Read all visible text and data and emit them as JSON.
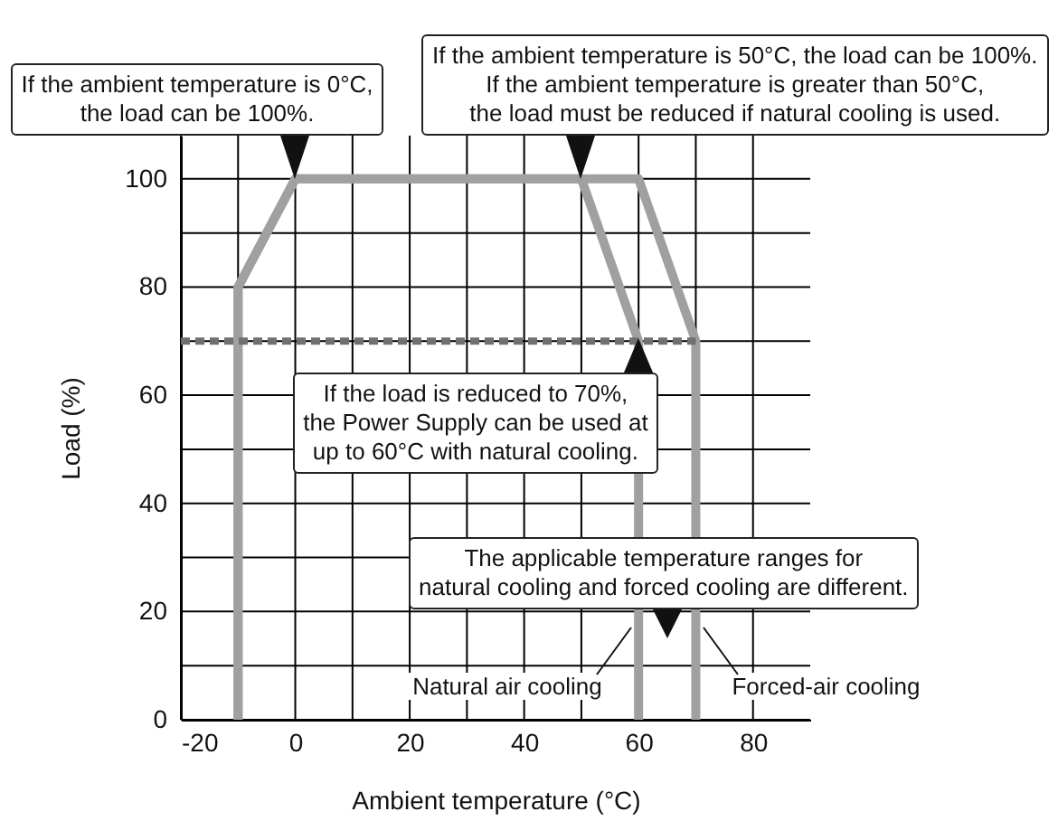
{
  "chart_data": {
    "type": "line",
    "xlabel": "Ambient temperature (°C)",
    "ylabel": "Load (%)",
    "xlim": [
      -20,
      90
    ],
    "ylim": [
      0,
      108
    ],
    "xticks": [
      -20,
      {
        "value": -10,
        "label": null
      },
      0,
      {
        "value": 10,
        "label": null
      },
      20,
      {
        "value": 30,
        "label": null
      },
      40,
      {
        "value": 50,
        "label": null
      },
      60,
      {
        "value": 70,
        "label": null
      },
      80
    ],
    "yticks": [
      0,
      {
        "value": 10,
        "label": null
      },
      20,
      {
        "value": 30,
        "label": null
      },
      40,
      {
        "value": 50,
        "label": null
      },
      60,
      {
        "value": 70,
        "label": null
      },
      80,
      {
        "value": 90,
        "label": null
      },
      100
    ],
    "grid": true,
    "series": [
      {
        "name": "Natural air cooling",
        "color": "#a0a0a0",
        "x": [
          -10,
          -10,
          0,
          50,
          60,
          60
        ],
        "values": [
          0,
          80,
          100,
          100,
          70,
          0
        ]
      },
      {
        "name": "Forced-air cooling",
        "color": "#a0a0a0",
        "x": [
          -10,
          -10,
          0,
          60,
          70,
          70
        ],
        "values": [
          0,
          80,
          100,
          100,
          70,
          0
        ]
      },
      {
        "color": "#707070",
        "line_style": "dashed",
        "x": [
          -20,
          70
        ],
        "values": [
          70,
          70
        ]
      }
    ],
    "annotations": [
      {
        "text": "If the ambient temperature is 0°C,\nthe load can be 100%.",
        "x": 0,
        "y": 100
      },
      {
        "text": "If the ambient temperature is 50°C, the load can be 100%.\nIf the ambient temperature is greater than 50°C,\nthe load must be reduced if natural cooling is used.",
        "x": 50,
        "y": 100
      },
      {
        "text": "If the load is reduced to 70%,\nthe Power Supply can be used at\nup to 60°C with natural cooling.",
        "x": 60,
        "y": 70
      },
      "The applicable temperature ranges for\nnatural cooling and forced cooling are different."
    ]
  }
}
